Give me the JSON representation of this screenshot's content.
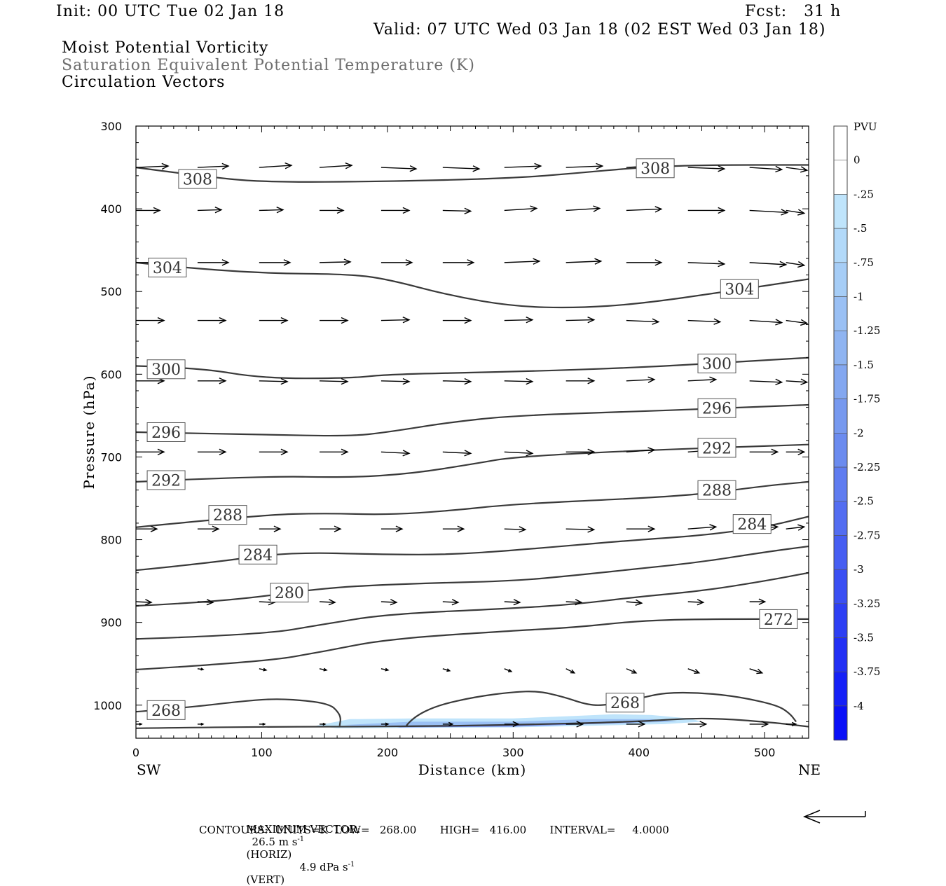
{
  "header": {
    "init": "Init: 00 UTC Tue 02 Jan 18",
    "fcst": "Fcst:   31 h",
    "valid": "Valid: 07 UTC Wed 03 Jan 18 (02 EST Wed 03 Jan 18)",
    "field1": "Moist Potential Vorticity",
    "field2": "Saturation Equivalent Potential Temperature (K)",
    "field3": "Circulation Vectors"
  },
  "footer": {
    "max_vector_label": "MAXIMUM VECTOR:",
    "horiz_value": "26.5 m s",
    "horiz_unit": "(HORIZ)",
    "vert_value": "4.9 dPa s",
    "vert_unit": "(VERT)",
    "sup": "-1",
    "contours": "CONTOURS:  UNITS=K  LOW=   268.00       HIGH=   416.00       INTERVAL=     4.0000"
  },
  "chart_data": {
    "type": "cross-section",
    "xlabel": "Distance (km)",
    "ylabel": "Pressure (hPa)",
    "xlim": [
      0,
      535
    ],
    "ylim": [
      300,
      1040
    ],
    "x_ticks": [
      0,
      100,
      200,
      300,
      400,
      500
    ],
    "y_ticks": [
      300,
      400,
      500,
      600,
      700,
      800,
      900,
      1000
    ],
    "x_end_labels": {
      "left": "SW",
      "right": "NE"
    },
    "colorbar": {
      "title": "PVU",
      "labels": [
        "0",
        "-.25",
        "-.5",
        "-.75",
        "-1",
        "-1.25",
        "-1.5",
        "-1.75",
        "-2",
        "-2.25",
        "-2.5",
        "-2.75",
        "-3",
        "-3.25",
        "-3.5",
        "-3.75",
        "-4"
      ],
      "colors": [
        "#ffffff",
        "#ffffff",
        "#bfe4fb",
        "#b2d9f9",
        "#a6cdf6",
        "#9ac0f4",
        "#8fb4f1",
        "#83a7f0",
        "#7799ef",
        "#6b8bef",
        "#5f7cf0",
        "#536df1",
        "#465ef2",
        "#3a4ff3",
        "#2d3ff4",
        "#2230f5",
        "#1520f7",
        "#0a10f8"
      ]
    },
    "contours": [
      {
        "label": "308",
        "points": [
          [
            0,
            350
          ],
          [
            50,
            360
          ],
          [
            100,
            368
          ],
          [
            200,
            367
          ],
          [
            300,
            363
          ],
          [
            350,
            357
          ],
          [
            400,
            350
          ],
          [
            450,
            347
          ],
          [
            535,
            347
          ]
        ]
      },
      {
        "label": "304",
        "points": [
          [
            0,
            465
          ],
          [
            30,
            470
          ],
          [
            100,
            478
          ],
          [
            170,
            479
          ],
          [
            200,
            485
          ],
          [
            250,
            505
          ],
          [
            300,
            518
          ],
          [
            350,
            520
          ],
          [
            400,
            515
          ],
          [
            470,
            500
          ],
          [
            535,
            485
          ]
        ]
      },
      {
        "label": "300",
        "points": [
          [
            0,
            590
          ],
          [
            50,
            592
          ],
          [
            100,
            605
          ],
          [
            170,
            605
          ],
          [
            200,
            600
          ],
          [
            300,
            597
          ],
          [
            400,
            592
          ],
          [
            500,
            583
          ],
          [
            535,
            580
          ]
        ]
      },
      {
        "label": "296",
        "points": [
          [
            0,
            670
          ],
          [
            100,
            673
          ],
          [
            170,
            675
          ],
          [
            200,
            670
          ],
          [
            250,
            658
          ],
          [
            300,
            650
          ],
          [
            400,
            645
          ],
          [
            450,
            642
          ],
          [
            535,
            637
          ]
        ]
      },
      {
        "label": "292",
        "points": [
          [
            0,
            730
          ],
          [
            100,
            723
          ],
          [
            170,
            725
          ],
          [
            220,
            720
          ],
          [
            270,
            708
          ],
          [
            300,
            700
          ],
          [
            400,
            692
          ],
          [
            535,
            685
          ]
        ]
      },
      {
        "label": "288",
        "points": [
          [
            0,
            785
          ],
          [
            100,
            770
          ],
          [
            150,
            768
          ],
          [
            200,
            770
          ],
          [
            250,
            765
          ],
          [
            300,
            757
          ],
          [
            400,
            750
          ],
          [
            450,
            745
          ],
          [
            500,
            735
          ],
          [
            535,
            730
          ]
        ]
      },
      {
        "label": "284",
        "points": [
          [
            0,
            837
          ],
          [
            60,
            828
          ],
          [
            120,
            815
          ],
          [
            200,
            818
          ],
          [
            250,
            818
          ],
          [
            300,
            813
          ],
          [
            400,
            800
          ],
          [
            450,
            795
          ],
          [
            500,
            785
          ],
          [
            535,
            772
          ]
        ]
      },
      {
        "label": "280",
        "points": [
          [
            0,
            880
          ],
          [
            70,
            875
          ],
          [
            150,
            858
          ],
          [
            220,
            853
          ],
          [
            300,
            850
          ],
          [
            350,
            843
          ],
          [
            400,
            835
          ],
          [
            450,
            827
          ],
          [
            500,
            815
          ],
          [
            535,
            808
          ]
        ]
      },
      {
        "label": "",
        "points": [
          [
            0,
            920
          ],
          [
            100,
            915
          ],
          [
            150,
            902
          ],
          [
            200,
            890
          ],
          [
            300,
            883
          ],
          [
            350,
            878
          ],
          [
            400,
            869
          ],
          [
            450,
            862
          ],
          [
            500,
            850
          ],
          [
            535,
            840
          ]
        ]
      },
      {
        "label": "272",
        "points": [
          [
            0,
            957
          ],
          [
            100,
            948
          ],
          [
            150,
            935
          ],
          [
            200,
            920
          ],
          [
            300,
            910
          ],
          [
            350,
            906
          ],
          [
            400,
            898
          ],
          [
            450,
            896
          ],
          [
            535,
            896
          ]
        ]
      },
      {
        "label": "",
        "points": [
          [
            0,
            1028
          ],
          [
            100,
            1026
          ],
          [
            200,
            1026
          ],
          [
            300,
            1024
          ],
          [
            400,
            1020
          ],
          [
            450,
            1015
          ],
          [
            500,
            1020
          ],
          [
            535,
            1026
          ]
        ]
      },
      {
        "label": "268",
        "points": [
          [
            0,
            1008
          ],
          [
            40,
            1003
          ],
          [
            80,
            996
          ],
          [
            110,
            992
          ],
          [
            140,
            995
          ],
          [
            155,
            1000
          ],
          [
            160,
            1007
          ],
          [
            163,
            1015
          ],
          [
            162,
            1025
          ]
        ]
      },
      {
        "label": "",
        "points": [
          [
            215,
            1025
          ],
          [
            220,
            1015
          ],
          [
            240,
            1000
          ],
          [
            270,
            990
          ],
          [
            300,
            984
          ],
          [
            320,
            983
          ],
          [
            340,
            990
          ],
          [
            360,
            1000
          ],
          [
            375,
            1000
          ],
          [
            400,
            992
          ],
          [
            420,
            985
          ],
          [
            450,
            985
          ],
          [
            480,
            990
          ],
          [
            510,
            1000
          ],
          [
            520,
            1010
          ],
          [
            525,
            1020
          ]
        ]
      }
    ],
    "contour_labels": [
      {
        "label": "308",
        "x": 49,
        "p": 364
      },
      {
        "label": "308",
        "x": 413,
        "p": 351
      },
      {
        "label": "304",
        "x": 25,
        "p": 471
      },
      {
        "label": "304",
        "x": 480,
        "p": 497
      },
      {
        "label": "300",
        "x": 24,
        "p": 594
      },
      {
        "label": "300",
        "x": 462,
        "p": 587
      },
      {
        "label": "296",
        "x": 24,
        "p": 670
      },
      {
        "label": "296",
        "x": 462,
        "p": 641
      },
      {
        "label": "292",
        "x": 24,
        "p": 728
      },
      {
        "label": "292",
        "x": 462,
        "p": 689
      },
      {
        "label": "288",
        "x": 73,
        "p": 770
      },
      {
        "label": "288",
        "x": 462,
        "p": 740
      },
      {
        "label": "284",
        "x": 97,
        "p": 818
      },
      {
        "label": "284",
        "x": 490,
        "p": 781
      },
      {
        "label": "280",
        "x": 122,
        "p": 864
      },
      {
        "label": "272",
        "x": 511,
        "p": 896
      },
      {
        "label": "268",
        "x": 24,
        "p": 1006
      },
      {
        "label": "268",
        "x": 389,
        "p": 997
      }
    ],
    "vectors": {
      "x": [
        0,
        49,
        98,
        146,
        195,
        244,
        293,
        342,
        390,
        439,
        488,
        517
      ],
      "rows": [
        {
          "p": 350,
          "u": [
            46,
            44,
            46,
            46,
            50,
            52,
            52,
            52,
            52,
            52,
            46,
            30
          ],
          "v": [
            -2,
            -2,
            -3,
            -3,
            2,
            2,
            -2,
            -2,
            -3,
            2,
            3,
            4
          ]
        },
        {
          "p": 402,
          "u": [
            34,
            34,
            34,
            34,
            40,
            40,
            46,
            48,
            50,
            52,
            54,
            26
          ],
          "v": [
            0,
            -1,
            -1,
            0,
            0,
            1,
            -3,
            -3,
            -2,
            0,
            3,
            4
          ]
        },
        {
          "p": 465,
          "u": [
            44,
            44,
            44,
            44,
            44,
            44,
            50,
            50,
            50,
            52,
            52,
            26
          ],
          "v": [
            0,
            0,
            0,
            -1,
            0,
            0,
            -2,
            -2,
            0,
            2,
            3,
            4
          ]
        },
        {
          "p": 535,
          "u": [
            40,
            40,
            40,
            40,
            40,
            40,
            40,
            40,
            46,
            46,
            46,
            30
          ],
          "v": [
            0,
            0,
            0,
            0,
            -1,
            0,
            -1,
            -1,
            2,
            2,
            3,
            4
          ]
        },
        {
          "p": 608,
          "u": [
            40,
            40,
            40,
            40,
            40,
            40,
            40,
            40,
            40,
            40,
            46,
            30
          ],
          "v": [
            0,
            0,
            1,
            1,
            1,
            1,
            1,
            0,
            -2,
            -2,
            2,
            2
          ]
        },
        {
          "p": 694,
          "u": [
            40,
            40,
            40,
            40,
            40,
            40,
            40,
            40,
            40,
            40,
            40,
            26
          ],
          "v": [
            0,
            0,
            0,
            0,
            2,
            2,
            2,
            0,
            -3,
            -3,
            0,
            0
          ]
        },
        {
          "p": 787,
          "u": [
            30,
            30,
            30,
            30,
            30,
            30,
            30,
            40,
            40,
            40,
            40,
            26
          ],
          "v": [
            0,
            0,
            0,
            0,
            0,
            0,
            1,
            1,
            0,
            -3,
            -3,
            -3
          ]
        },
        {
          "p": 875,
          "u": [
            22,
            22,
            22,
            22,
            22,
            22,
            22,
            22,
            22,
            22,
            22,
            0
          ],
          "v": [
            1,
            1,
            1,
            1,
            1,
            1,
            1,
            1,
            2,
            1,
            0,
            0
          ]
        },
        {
          "p": 956,
          "u": [
            0,
            8,
            10,
            10,
            10,
            10,
            10,
            12,
            14,
            16,
            18,
            0
          ],
          "v": [
            0,
            1,
            2,
            2,
            2,
            3,
            4,
            6,
            6,
            6,
            6,
            0
          ]
        },
        {
          "p": 1023,
          "u": [
            8,
            8,
            8,
            8,
            10,
            14,
            20,
            24,
            26,
            26,
            26,
            14
          ],
          "v": [
            0,
            0,
            0,
            0,
            0,
            0,
            0,
            0,
            0,
            0,
            0,
            0
          ]
        }
      ]
    },
    "mpv_shading": [
      {
        "pvu": -0.25,
        "color": "#bfe4fb",
        "points": [
          [
            143,
            1025
          ],
          [
            170,
            1017
          ],
          [
            220,
            1016
          ],
          [
            300,
            1016
          ],
          [
            350,
            1013
          ],
          [
            380,
            1011
          ],
          [
            410,
            1012
          ],
          [
            440,
            1016
          ],
          [
            450,
            1020
          ],
          [
            420,
            1023
          ],
          [
            300,
            1027
          ],
          [
            160,
            1028
          ]
        ]
      },
      {
        "pvu": -0.75,
        "color": "#9ac0f4",
        "points": [
          [
            165,
            1024
          ],
          [
            220,
            1020
          ],
          [
            300,
            1020
          ],
          [
            360,
            1017
          ],
          [
            410,
            1017
          ],
          [
            430,
            1020
          ],
          [
            300,
            1025
          ],
          [
            180,
            1026
          ]
        ]
      },
      {
        "pvu": -1.5,
        "color": "#7b91ee",
        "points": [
          [
            200,
            1025
          ],
          [
            300,
            1023
          ],
          [
            360,
            1021
          ],
          [
            400,
            1021
          ],
          [
            300,
            1026
          ],
          [
            210,
            1027
          ]
        ]
      }
    ]
  }
}
